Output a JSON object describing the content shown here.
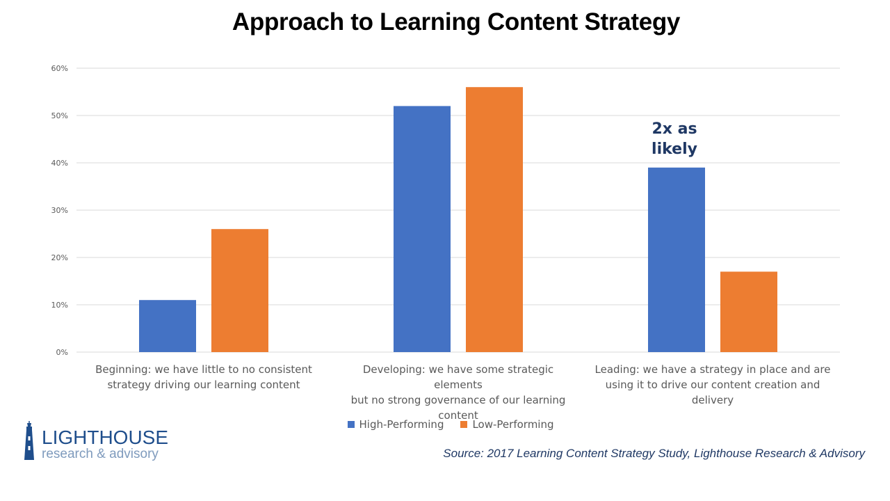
{
  "chart_data": {
    "type": "bar",
    "title": "Approach to Learning Content Strategy",
    "categories": [
      "Beginning: we have little to no consistent strategy driving our learning content",
      "Developing: we have some strategic elements but no strong governance of our learning content",
      "Leading: we have a strategy in place and are using it to drive our content creation and delivery"
    ],
    "series": [
      {
        "name": "High-Performing",
        "color": "#4472c4",
        "values": [
          11,
          52,
          39
        ]
      },
      {
        "name": "Low-Performing",
        "color": "#ed7d31",
        "values": [
          26,
          56,
          17
        ]
      }
    ],
    "ylim": [
      0,
      60
    ],
    "yticks": [
      0,
      10,
      20,
      30,
      40,
      50,
      60
    ],
    "ytick_labels": [
      "0%",
      "10%",
      "20%",
      "30%",
      "40%",
      "50%",
      "60%"
    ],
    "grid": true,
    "legend_position": "bottom",
    "annotations": [
      {
        "text": "2x as likely",
        "category": "Leading: we have a strategy in place and are using it to drive our content creation and delivery",
        "series": "High-Performing"
      }
    ]
  },
  "category_lines": [
    [
      "Beginning: we have little to no consistent",
      "strategy driving our learning content"
    ],
    [
      "Developing: we have some strategic elements",
      "but no strong governance of our learning",
      "content"
    ],
    [
      "Leading: we have a strategy in place and are",
      "using it to drive our content creation and",
      "delivery"
    ]
  ],
  "annotation": {
    "line1": "2x as",
    "line2": "likely"
  },
  "source": "Source: 2017 Learning Content Strategy Study, Lighthouse Research & Advisory",
  "logo": {
    "word": "LIGHTHOUSE",
    "sub": "research & advisory"
  }
}
